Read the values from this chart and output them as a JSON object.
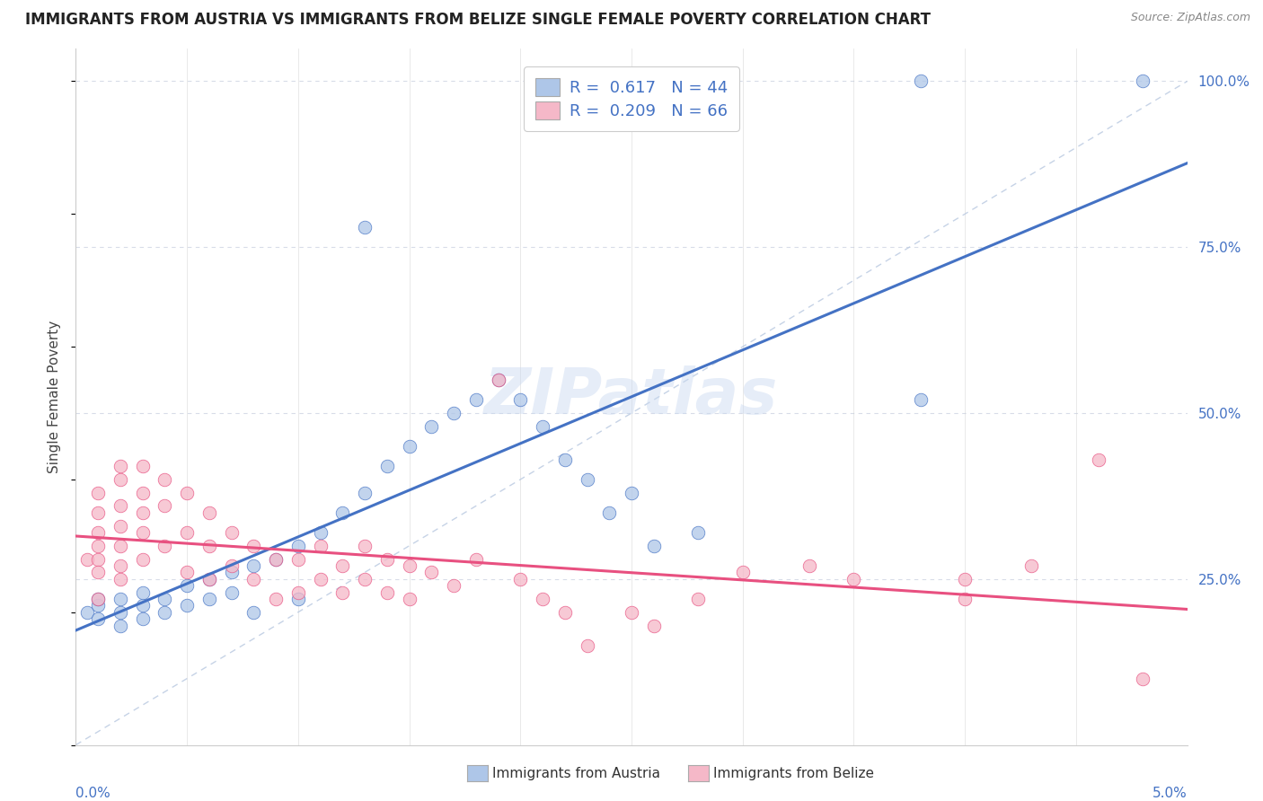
{
  "title": "IMMIGRANTS FROM AUSTRIA VS IMMIGRANTS FROM BELIZE SINGLE FEMALE POVERTY CORRELATION CHART",
  "source": "Source: ZipAtlas.com",
  "ylabel": "Single Female Poverty",
  "legend_austria": {
    "R": "0.617",
    "N": "44"
  },
  "legend_belize": {
    "R": "0.209",
    "N": "66"
  },
  "austria_color": "#aec6e8",
  "belize_color": "#f5b8c8",
  "austria_line_color": "#4472c4",
  "belize_line_color": "#e85080",
  "diagonal_color": "#b8c8e0",
  "watermark": "ZIPatlas",
  "austria_scatter": [
    [
      0.0005,
      0.2
    ],
    [
      0.001,
      0.21
    ],
    [
      0.001,
      0.19
    ],
    [
      0.001,
      0.22
    ],
    [
      0.002,
      0.2
    ],
    [
      0.002,
      0.22
    ],
    [
      0.002,
      0.18
    ],
    [
      0.003,
      0.21
    ],
    [
      0.003,
      0.23
    ],
    [
      0.003,
      0.19
    ],
    [
      0.004,
      0.22
    ],
    [
      0.004,
      0.2
    ],
    [
      0.005,
      0.24
    ],
    [
      0.005,
      0.21
    ],
    [
      0.006,
      0.25
    ],
    [
      0.006,
      0.22
    ],
    [
      0.007,
      0.26
    ],
    [
      0.007,
      0.23
    ],
    [
      0.008,
      0.27
    ],
    [
      0.008,
      0.2
    ],
    [
      0.009,
      0.28
    ],
    [
      0.01,
      0.3
    ],
    [
      0.01,
      0.22
    ],
    [
      0.011,
      0.32
    ],
    [
      0.012,
      0.35
    ],
    [
      0.013,
      0.38
    ],
    [
      0.013,
      0.78
    ],
    [
      0.014,
      0.42
    ],
    [
      0.015,
      0.45
    ],
    [
      0.016,
      0.48
    ],
    [
      0.017,
      0.5
    ],
    [
      0.018,
      0.52
    ],
    [
      0.019,
      0.55
    ],
    [
      0.02,
      0.52
    ],
    [
      0.021,
      0.48
    ],
    [
      0.022,
      0.43
    ],
    [
      0.023,
      0.4
    ],
    [
      0.024,
      0.35
    ],
    [
      0.025,
      0.38
    ],
    [
      0.026,
      0.3
    ],
    [
      0.028,
      0.32
    ],
    [
      0.038,
      0.52
    ],
    [
      0.038,
      1.0
    ],
    [
      0.048,
      1.0
    ]
  ],
  "belize_scatter": [
    [
      0.0005,
      0.28
    ],
    [
      0.001,
      0.28
    ],
    [
      0.001,
      0.3
    ],
    [
      0.001,
      0.26
    ],
    [
      0.001,
      0.32
    ],
    [
      0.001,
      0.35
    ],
    [
      0.001,
      0.38
    ],
    [
      0.001,
      0.22
    ],
    [
      0.002,
      0.3
    ],
    [
      0.002,
      0.33
    ],
    [
      0.002,
      0.36
    ],
    [
      0.002,
      0.4
    ],
    [
      0.002,
      0.42
    ],
    [
      0.002,
      0.25
    ],
    [
      0.002,
      0.27
    ],
    [
      0.003,
      0.32
    ],
    [
      0.003,
      0.35
    ],
    [
      0.003,
      0.38
    ],
    [
      0.003,
      0.42
    ],
    [
      0.003,
      0.28
    ],
    [
      0.004,
      0.36
    ],
    [
      0.004,
      0.4
    ],
    [
      0.004,
      0.3
    ],
    [
      0.005,
      0.38
    ],
    [
      0.005,
      0.32
    ],
    [
      0.005,
      0.26
    ],
    [
      0.006,
      0.35
    ],
    [
      0.006,
      0.3
    ],
    [
      0.006,
      0.25
    ],
    [
      0.007,
      0.32
    ],
    [
      0.007,
      0.27
    ],
    [
      0.008,
      0.3
    ],
    [
      0.008,
      0.25
    ],
    [
      0.009,
      0.28
    ],
    [
      0.009,
      0.22
    ],
    [
      0.01,
      0.28
    ],
    [
      0.01,
      0.23
    ],
    [
      0.011,
      0.3
    ],
    [
      0.011,
      0.25
    ],
    [
      0.012,
      0.27
    ],
    [
      0.012,
      0.23
    ],
    [
      0.013,
      0.3
    ],
    [
      0.013,
      0.25
    ],
    [
      0.014,
      0.28
    ],
    [
      0.014,
      0.23
    ],
    [
      0.015,
      0.27
    ],
    [
      0.015,
      0.22
    ],
    [
      0.016,
      0.26
    ],
    [
      0.017,
      0.24
    ],
    [
      0.018,
      0.28
    ],
    [
      0.019,
      0.55
    ],
    [
      0.02,
      0.25
    ],
    [
      0.021,
      0.22
    ],
    [
      0.022,
      0.2
    ],
    [
      0.023,
      0.15
    ],
    [
      0.025,
      0.2
    ],
    [
      0.026,
      0.18
    ],
    [
      0.028,
      0.22
    ],
    [
      0.03,
      0.26
    ],
    [
      0.033,
      0.27
    ],
    [
      0.035,
      0.25
    ],
    [
      0.04,
      0.25
    ],
    [
      0.04,
      0.22
    ],
    [
      0.043,
      0.27
    ],
    [
      0.046,
      0.43
    ],
    [
      0.048,
      0.1
    ]
  ],
  "xlim": [
    0.0,
    0.05
  ],
  "ylim": [
    0.0,
    1.05
  ],
  "xaxis_min_label": "0.0%",
  "xaxis_max_label": "5.0%",
  "yaxis_ticks": [
    0.25,
    0.5,
    0.75,
    1.0
  ],
  "yaxis_labels": [
    "25.0%",
    "50.0%",
    "75.0%",
    "100.0%"
  ],
  "grid_color": "#d8dce8",
  "spine_color": "#cccccc",
  "title_fontsize": 12,
  "source_fontsize": 9,
  "tick_fontsize": 11,
  "ylabel_fontsize": 11,
  "scatter_size": 110,
  "scatter_alpha": 0.75,
  "scatter_edgewidth": 0.6
}
